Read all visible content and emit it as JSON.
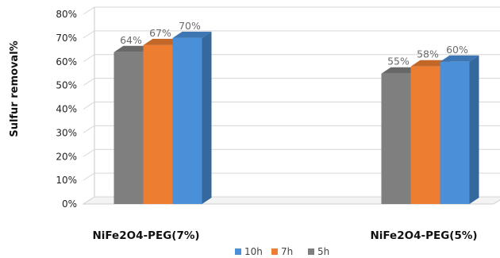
{
  "chart_data": {
    "type": "bar",
    "ylabel": "Sulfur removal%",
    "xlabel": "",
    "categories": [
      "NiFe2O4-PEG(7%)",
      "NiFe2O4-PEG(5%)"
    ],
    "series": [
      {
        "name": "5h",
        "values": [
          64,
          55
        ],
        "labels": [
          "64%",
          "55%"
        ],
        "color": "#7f7f7f"
      },
      {
        "name": "7h",
        "values": [
          67,
          58
        ],
        "labels": [
          "67%",
          "58%"
        ],
        "color": "#ed7d31"
      },
      {
        "name": "10h",
        "values": [
          70,
          60
        ],
        "labels": [
          "70%",
          "60%"
        ],
        "color": "#4a90d9"
      }
    ],
    "ylim": [
      0,
      80
    ],
    "yticks": [
      0,
      10,
      20,
      30,
      40,
      50,
      60,
      70,
      80
    ],
    "ytick_labels": [
      "0%",
      "10%",
      "20%",
      "30%",
      "40%",
      "50%",
      "60%",
      "70%",
      "80%"
    ],
    "legend_order": [
      "10h",
      "7h",
      "5h"
    ],
    "legend_position": "bottom",
    "grid": true,
    "style": "3d-clustered-column"
  }
}
